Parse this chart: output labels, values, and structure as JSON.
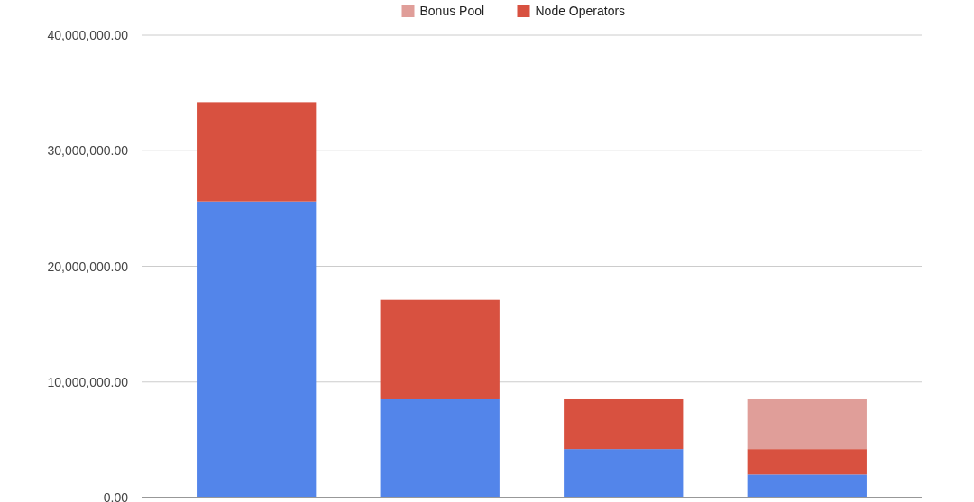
{
  "chart_data": {
    "type": "bar",
    "stacked": true,
    "categories": [
      null,
      null,
      null,
      null
    ],
    "series": [
      {
        "color": "#5385ea",
        "values": [
          25600000,
          8500000,
          4200000,
          2000000
        ]
      },
      {
        "name": "Node Operators",
        "color": "#d85140",
        "values": [
          8600000,
          8600000,
          4300000,
          2200000
        ]
      },
      {
        "name": "Bonus Pool",
        "color": "#e09e99",
        "values": [
          null,
          null,
          null,
          4300000
        ]
      }
    ],
    "ylim": [
      0,
      40000000
    ],
    "yticks": [
      {
        "value": 0,
        "label": "0.00"
      },
      {
        "value": 10000000,
        "label": "10,000,000.00"
      },
      {
        "value": 20000000,
        "label": "20,000,000.00"
      },
      {
        "value": 30000000,
        "label": "30,000,000.00"
      },
      {
        "value": 40000000,
        "label": "40,000,000.00"
      }
    ],
    "grid": "y",
    "legend": "top"
  }
}
